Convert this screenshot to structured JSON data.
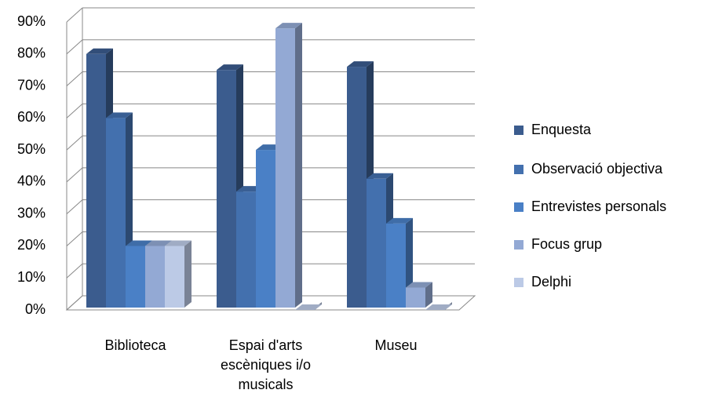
{
  "chart_data": {
    "type": "bar3d",
    "categories": [
      "Biblioteca",
      "Espai d'arts escèniques i/o musicals",
      "Museu"
    ],
    "series": [
      {
        "name": "Enquesta",
        "color": "#3b5c8e",
        "values": [
          80,
          75,
          76
        ]
      },
      {
        "name": "Observació objectiva",
        "color": "#4370ae",
        "values": [
          60,
          37,
          41
        ]
      },
      {
        "name": "Entrevistes personals",
        "color": "#4a80c6",
        "values": [
          20,
          50,
          27
        ]
      },
      {
        "name": "Focus grup",
        "color": "#93a9d4",
        "values": [
          20,
          88,
          7
        ]
      },
      {
        "name": "Delphi",
        "color": "#bccae6",
        "values": [
          20,
          0,
          0
        ]
      }
    ],
    "ylim": [
      0,
      90
    ],
    "yticks": [
      {
        "value": 0,
        "label": "0%"
      },
      {
        "value": 10,
        "label": "10%"
      },
      {
        "value": 20,
        "label": "20%"
      },
      {
        "value": 30,
        "label": "30%"
      },
      {
        "value": 40,
        "label": "40%"
      },
      {
        "value": 50,
        "label": "50%"
      },
      {
        "value": 60,
        "label": "60%"
      },
      {
        "value": 70,
        "label": "70%"
      },
      {
        "value": 80,
        "label": "80%"
      },
      {
        "value": 90,
        "label": "90%"
      }
    ],
    "grid": true,
    "legend": "right"
  }
}
